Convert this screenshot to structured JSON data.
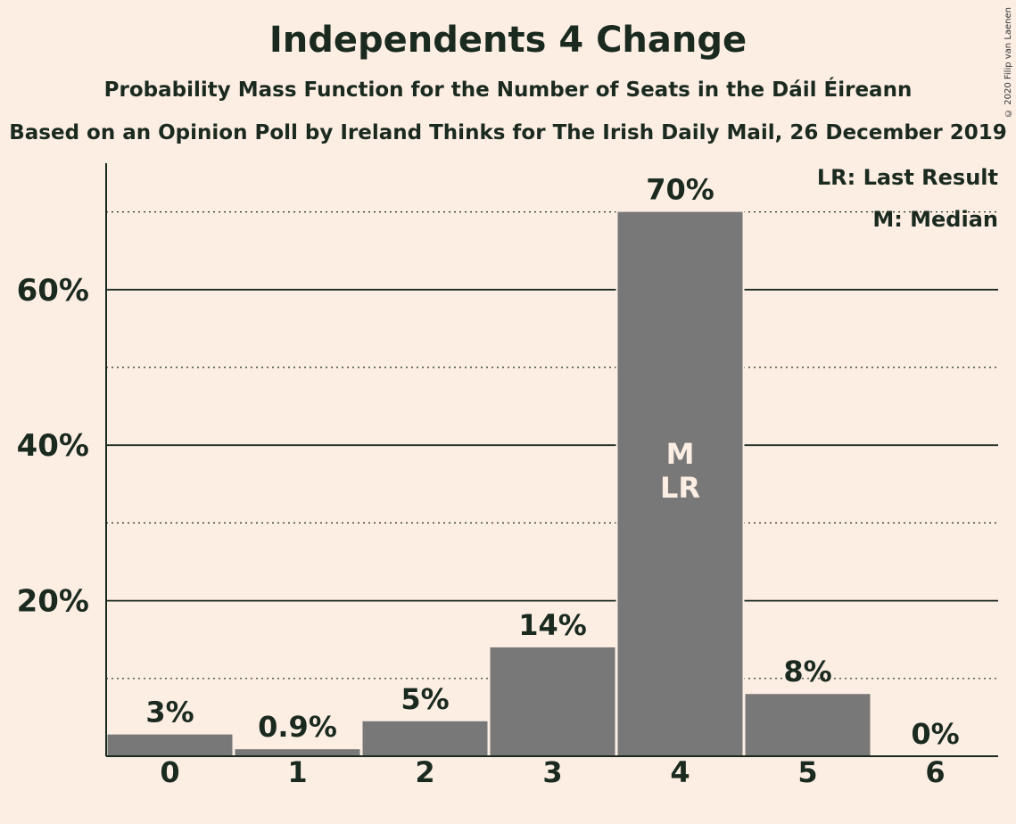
{
  "title": "Independents 4 Change",
  "subtitle": "Probability Mass Function for the Number of Seats in the Dáil Éireann",
  "source": "Based on an Opinion Poll by Ireland Thinks for The Irish Daily Mail, 26 December 2019",
  "copyright": "© 2020 Filip van Laenen",
  "legend": {
    "lr": "LR: Last Result",
    "m": "M: Median"
  },
  "colors": {
    "background": "#fdeee4",
    "bar": "#787878",
    "text": "#1a2a1f",
    "bar_text": "#fdeee4"
  },
  "chart_data": {
    "type": "bar",
    "title": "Independents 4 Change",
    "categories": [
      "0",
      "1",
      "2",
      "3",
      "4",
      "5",
      "6"
    ],
    "values": [
      2.8,
      0.9,
      4.5,
      14,
      70,
      8,
      0
    ],
    "data_labels": [
      "3%",
      "0.9%",
      "5%",
      "14%",
      "70%",
      "8%",
      "0%"
    ],
    "ylim": [
      0,
      76
    ],
    "yticks": [
      20,
      40,
      60
    ],
    "ytick_labels": [
      "20%",
      "40%",
      "60%"
    ],
    "minor_gridlines": [
      10,
      30,
      50,
      70
    ],
    "bar_annotations": {
      "4": [
        "M",
        "LR"
      ]
    },
    "grid": true,
    "legend_position": "top-right"
  }
}
